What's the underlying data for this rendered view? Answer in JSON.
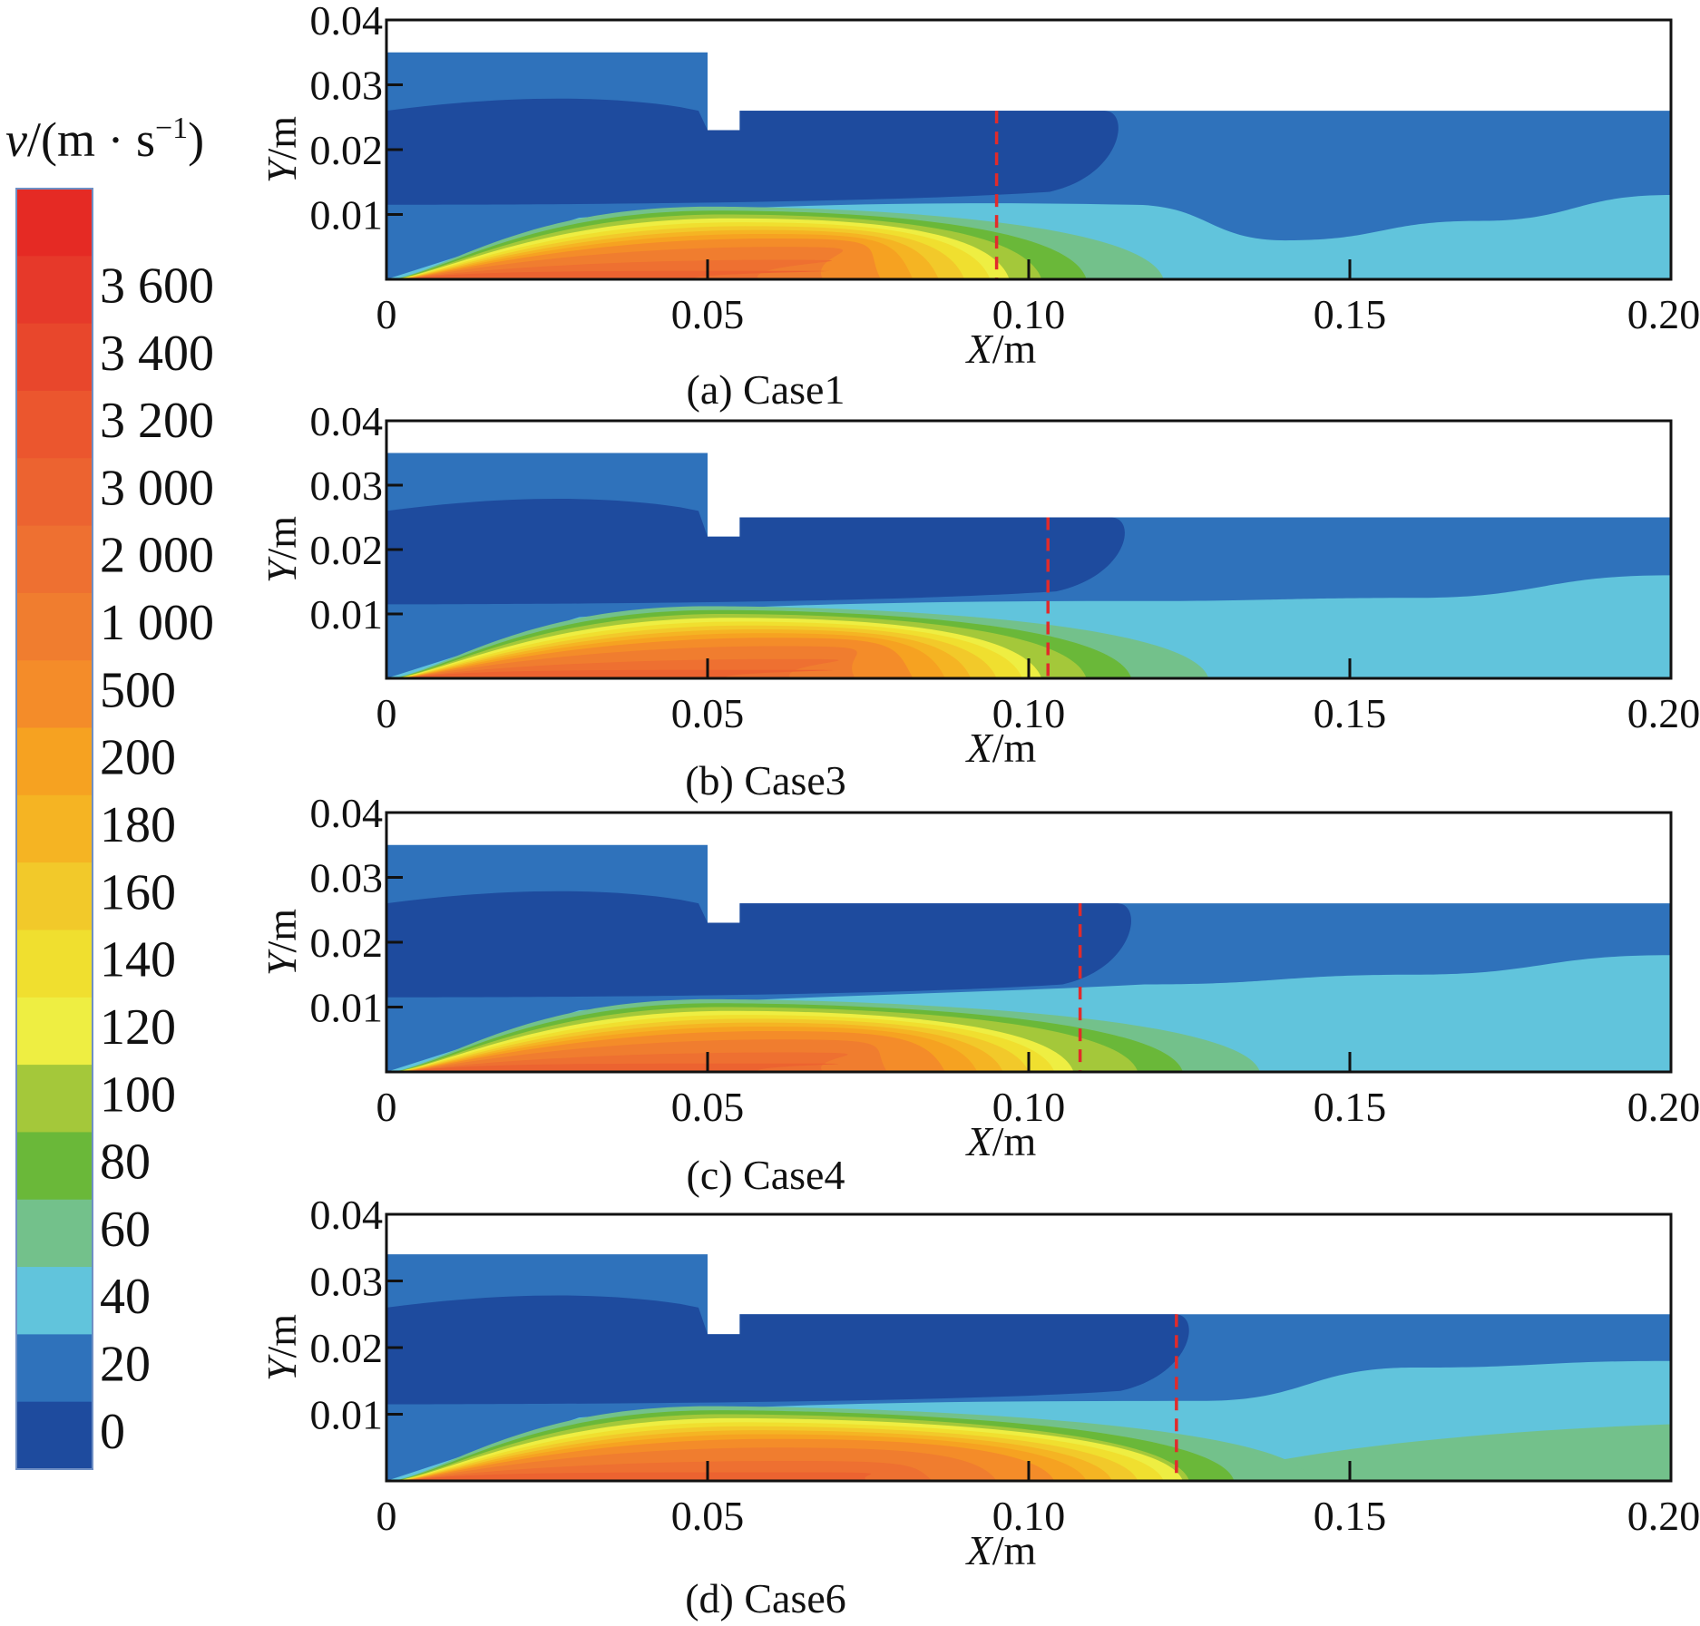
{
  "legend": {
    "symbol": "v",
    "unit": "/(m · s",
    "exponent": "−1",
    "close": ")",
    "levels": [
      "3 600",
      "3 400",
      "3 200",
      "3 000",
      "2 000",
      "1 000",
      "500",
      "200",
      "180",
      "160",
      "140",
      "120",
      "100",
      "80",
      "60",
      "40",
      "20",
      "0"
    ],
    "colors": [
      "#e52a24",
      "#e6392a",
      "#e8472c",
      "#eb562e",
      "#ec6330",
      "#ee7031",
      "#f07d2f",
      "#f48c29",
      "#f6a221",
      "#f5b423",
      "#f2c92a",
      "#f0df2f",
      "#eeee42",
      "#a4c83a",
      "#6ab839",
      "#73c18b",
      "#61c4dc",
      "#2f72bb",
      "#1e4b9e"
    ]
  },
  "chart_data": [
    {
      "type": "heatmap",
      "caption": "(a) Case1",
      "xlabel_var": "X",
      "xlabel_unit": "/m",
      "ylabel_var": "Y",
      "ylabel_unit": "/m",
      "xlim": [
        0,
        0.2
      ],
      "ylim": [
        0,
        0.04
      ],
      "xticks": [
        "0",
        "0.05",
        "0.10",
        "0.15",
        "0.20"
      ],
      "yticks": [
        "0.01",
        "0.02",
        "0.03",
        "0.04"
      ],
      "dashed_line_x": 0.095,
      "geometry": {
        "inlet_top": 0.035,
        "step_x": [
          0.05,
          0.055
        ],
        "step_bottom": 0.023,
        "outlet_top": 0.026
      },
      "core_end_x": 0.093,
      "green_end_x": 0.115,
      "interface_x": 0.116,
      "lightblue_top": [
        [
          0.116,
          0.0115
        ],
        [
          0.14,
          0.006
        ],
        [
          0.17,
          0.009
        ],
        [
          0.2,
          0.013
        ]
      ],
      "bottom_green": false
    },
    {
      "type": "heatmap",
      "caption": "(b) Case3",
      "xlabel_var": "X",
      "xlabel_unit": "/m",
      "ylabel_var": "Y",
      "ylabel_unit": "/m",
      "xlim": [
        0,
        0.2
      ],
      "ylim": [
        0,
        0.04
      ],
      "xticks": [
        "0",
        "0.05",
        "0.10",
        "0.15",
        "0.20"
      ],
      "yticks": [
        "0.01",
        "0.02",
        "0.03",
        "0.04"
      ],
      "dashed_line_x": 0.103,
      "geometry": {
        "inlet_top": 0.035,
        "step_x": [
          0.05,
          0.055
        ],
        "step_bottom": 0.022,
        "outlet_top": 0.025
      },
      "core_end_x": 0.098,
      "green_end_x": 0.122,
      "interface_x": 0.117,
      "lightblue_top": [
        [
          0.117,
          0.012
        ],
        [
          0.16,
          0.0125
        ],
        [
          0.2,
          0.016
        ]
      ],
      "bottom_green": false
    },
    {
      "type": "heatmap",
      "caption": "(c) Case4",
      "xlabel_var": "X",
      "xlabel_unit": "/m",
      "ylabel_var": "Y",
      "ylabel_unit": "/m",
      "xlim": [
        0,
        0.2
      ],
      "ylim": [
        0,
        0.04
      ],
      "xticks": [
        "0",
        "0.05",
        "0.10",
        "0.15",
        "0.20"
      ],
      "yticks": [
        "0.01",
        "0.02",
        "0.03",
        "0.04"
      ],
      "dashed_line_x": 0.108,
      "geometry": {
        "inlet_top": 0.035,
        "step_x": [
          0.05,
          0.055
        ],
        "step_bottom": 0.023,
        "outlet_top": 0.026
      },
      "core_end_x": 0.103,
      "green_end_x": 0.13,
      "interface_x": 0.118,
      "lightblue_top": [
        [
          0.118,
          0.0135
        ],
        [
          0.16,
          0.015
        ],
        [
          0.2,
          0.018
        ]
      ],
      "bottom_green": false
    },
    {
      "type": "heatmap",
      "caption": "(d) Case6",
      "xlabel_var": "X",
      "xlabel_unit": "/m",
      "ylabel_var": "Y",
      "ylabel_unit": "/m",
      "xlim": [
        0,
        0.2
      ],
      "ylim": [
        0,
        0.04
      ],
      "xticks": [
        "0",
        "0.05",
        "0.10",
        "0.15",
        "0.20"
      ],
      "yticks": [
        "0.01",
        "0.02",
        "0.03",
        "0.04"
      ],
      "dashed_line_x": 0.123,
      "geometry": {
        "inlet_top": 0.034,
        "step_x": [
          0.05,
          0.055
        ],
        "step_bottom": 0.022,
        "outlet_top": 0.025
      },
      "core_end_x": 0.12,
      "green_end_x": 0.138,
      "interface_x": 0.127,
      "lightblue_top": [
        [
          0.127,
          0.012
        ],
        [
          0.16,
          0.017
        ],
        [
          0.2,
          0.018
        ]
      ],
      "bottom_green": true
    }
  ]
}
